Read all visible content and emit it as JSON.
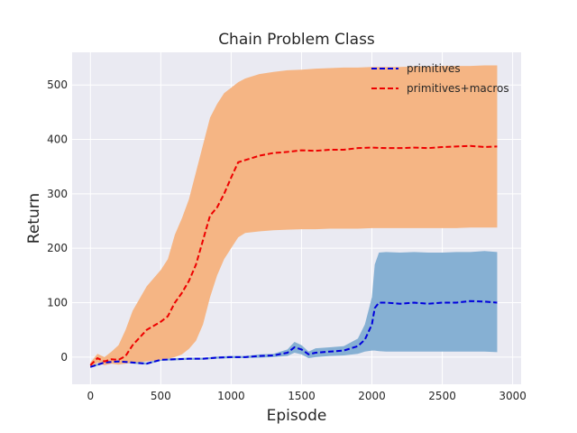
{
  "chart_data": {
    "type": "line",
    "title": "Chain Problem Class",
    "xlabel": "Episode",
    "ylabel": "Return",
    "xlim": [
      -130,
      3060
    ],
    "ylim": [
      -50,
      560
    ],
    "xticks": [
      0,
      500,
      1000,
      1500,
      2000,
      2500,
      3000
    ],
    "yticks": [
      0,
      100,
      200,
      300,
      400,
      500
    ],
    "grid": true,
    "legend_position": "top-right",
    "series": [
      {
        "name": "primitives",
        "color": "#0000dd",
        "band_color": "#86b0d3",
        "line_style": "dashed",
        "x": [
          0,
          100,
          200,
          300,
          400,
          500,
          600,
          700,
          800,
          900,
          1000,
          1100,
          1200,
          1300,
          1400,
          1450,
          1500,
          1550,
          1600,
          1700,
          1800,
          1900,
          1950,
          2000,
          2020,
          2050,
          2100,
          2200,
          2300,
          2400,
          2500,
          2600,
          2700,
          2800,
          2890
        ],
        "mean": [
          -18,
          -10,
          -8,
          -10,
          -12,
          -5,
          -4,
          -3,
          -3,
          -1,
          0,
          0,
          2,
          3,
          8,
          18,
          14,
          5,
          8,
          10,
          12,
          20,
          32,
          60,
          90,
          100,
          100,
          98,
          100,
          98,
          100,
          100,
          103,
          102,
          100
        ],
        "lower": [
          -20,
          -12,
          -10,
          -12,
          -14,
          -7,
          -6,
          -5,
          -5,
          -3,
          -2,
          -2,
          -1,
          0,
          2,
          8,
          5,
          -2,
          0,
          2,
          3,
          6,
          10,
          12,
          12,
          11,
          10,
          10,
          10,
          10,
          10,
          10,
          10,
          10,
          9
        ],
        "upper": [
          -16,
          -8,
          -6,
          -8,
          -10,
          -3,
          -2,
          -1,
          -1,
          1,
          2,
          2,
          5,
          6,
          14,
          28,
          22,
          10,
          16,
          18,
          20,
          34,
          60,
          110,
          170,
          192,
          193,
          192,
          193,
          192,
          192,
          193,
          193,
          195,
          193
        ]
      },
      {
        "name": "primitives+macros",
        "color": "#ee0000",
        "band_color": "#f5b584",
        "line_style": "dashed",
        "x": [
          0,
          50,
          100,
          150,
          200,
          250,
          300,
          400,
          500,
          550,
          600,
          650,
          700,
          750,
          800,
          850,
          900,
          950,
          1000,
          1050,
          1100,
          1200,
          1300,
          1400,
          1500,
          1600,
          1700,
          1800,
          1900,
          2000,
          2100,
          2200,
          2300,
          2400,
          2500,
          2600,
          2700,
          2800,
          2890
        ],
        "mean": [
          -15,
          -2,
          -8,
          -4,
          -5,
          2,
          22,
          50,
          65,
          75,
          100,
          118,
          140,
          170,
          215,
          260,
          275,
          300,
          330,
          358,
          362,
          370,
          375,
          377,
          380,
          379,
          381,
          381,
          384,
          385,
          384,
          384,
          385,
          384,
          386,
          387,
          388,
          386,
          387
        ],
        "lower": [
          -20,
          -10,
          -15,
          -12,
          -14,
          -12,
          -10,
          -8,
          -5,
          -3,
          0,
          5,
          15,
          30,
          60,
          110,
          150,
          180,
          200,
          220,
          228,
          231,
          233,
          234,
          235,
          235,
          236,
          236,
          236,
          237,
          237,
          237,
          237,
          237,
          237,
          237,
          238,
          238,
          238
        ],
        "upper": [
          -10,
          6,
          0,
          10,
          22,
          50,
          85,
          130,
          160,
          180,
          225,
          255,
          290,
          340,
          390,
          440,
          465,
          485,
          495,
          505,
          512,
          520,
          524,
          527,
          528,
          530,
          531,
          532,
          532,
          533,
          533,
          533,
          534,
          534,
          535,
          535,
          535,
          536,
          536
        ]
      }
    ]
  }
}
